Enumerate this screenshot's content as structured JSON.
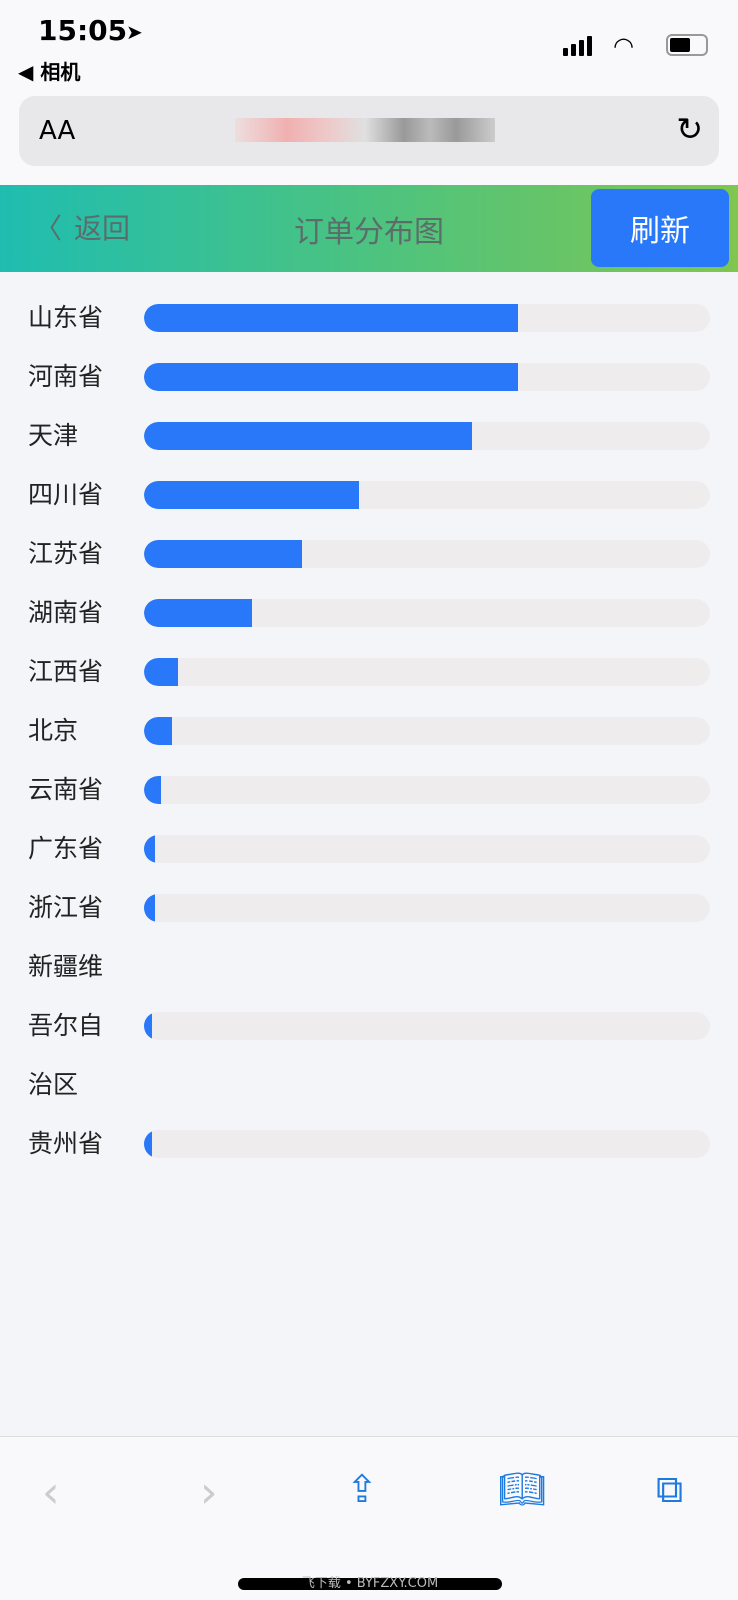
{
  "status_bar": {
    "time": "15:05",
    "back_app": "◀ 相机"
  },
  "browser": {
    "text_size": "AA"
  },
  "header": {
    "back": "返回",
    "title": "订单分布图",
    "refresh": "刷新"
  },
  "chart_data": {
    "type": "bar",
    "orientation": "horizontal",
    "categories": [
      "山东省",
      "河南省",
      "天津",
      "四川省",
      "江苏省",
      "湖南省",
      "江西省",
      "北京",
      "云南省",
      "广东省",
      "浙江省",
      "新疆维吾尔自治区",
      "贵州省"
    ],
    "values": [
      0.66,
      0.66,
      0.58,
      0.38,
      0.28,
      0.19,
      0.06,
      0.05,
      0.03,
      0.02,
      0.02,
      0.01,
      0.01
    ],
    "bar_color": "#2878f9",
    "track_color": "#efecee"
  },
  "watermark": "飞下载 • BYFZXY.COM",
  "colors": {
    "accent": "#2878f9",
    "nav_gradient_start": "#1fbdb0",
    "nav_gradient_end": "#80c650"
  }
}
